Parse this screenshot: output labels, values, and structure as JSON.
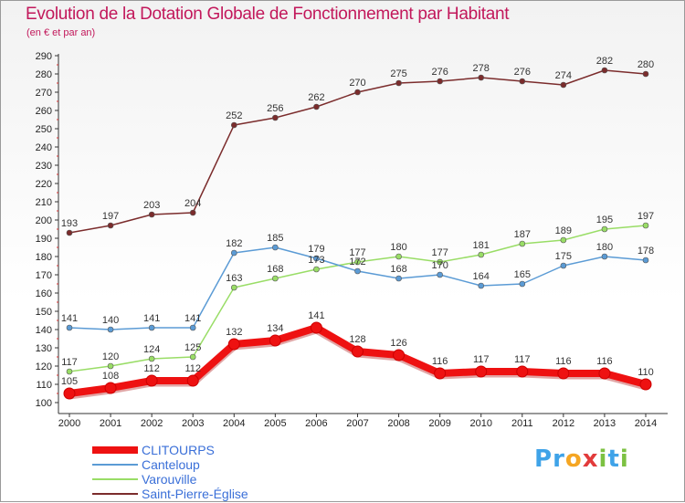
{
  "title": "Evolution de la Dotation Globale de Fonctionnement par Habitant",
  "subtitle": "(en € et par an)",
  "logo": {
    "letters": [
      "P",
      "r",
      "o",
      "x",
      "i",
      "t",
      "i"
    ],
    "colors": [
      "#3fa3e8",
      "#3fa3e8",
      "#f5a623",
      "#e23b3b",
      "#7cc142",
      "#3fa3e8",
      "#7cc142"
    ]
  },
  "chart_data": {
    "type": "line",
    "x": [
      "2000",
      "2001",
      "2002",
      "2003",
      "2004",
      "2005",
      "2006",
      "2007",
      "2008",
      "2009",
      "2010",
      "2011",
      "2012",
      "2013",
      "2014"
    ],
    "ylim": [
      100,
      290
    ],
    "yticks": [
      100,
      110,
      120,
      130,
      140,
      150,
      160,
      170,
      180,
      190,
      200,
      210,
      220,
      230,
      240,
      250,
      260,
      270,
      280,
      290
    ],
    "grid": false,
    "legend_position": "bottom-left",
    "series": [
      {
        "name": "CLITOURPS",
        "color": "#ee1111",
        "values": [
          105,
          108,
          112,
          112,
          132,
          134,
          141,
          128,
          126,
          116,
          117,
          117,
          116,
          116,
          110
        ]
      },
      {
        "name": "Canteloup",
        "color": "#5b9bd5",
        "values": [
          141,
          140,
          141,
          141,
          182,
          185,
          179,
          172,
          168,
          170,
          164,
          165,
          175,
          180,
          178
        ]
      },
      {
        "name": "Varouville",
        "color": "#99dd66",
        "values": [
          117,
          120,
          124,
          125,
          163,
          168,
          173,
          177,
          180,
          177,
          181,
          187,
          189,
          195,
          197
        ]
      },
      {
        "name": "Saint-Pierre-Église",
        "color": "#7b2c2c",
        "values": [
          193,
          197,
          203,
          204,
          252,
          256,
          262,
          270,
          275,
          276,
          278,
          276,
          274,
          282,
          280
        ]
      }
    ]
  }
}
